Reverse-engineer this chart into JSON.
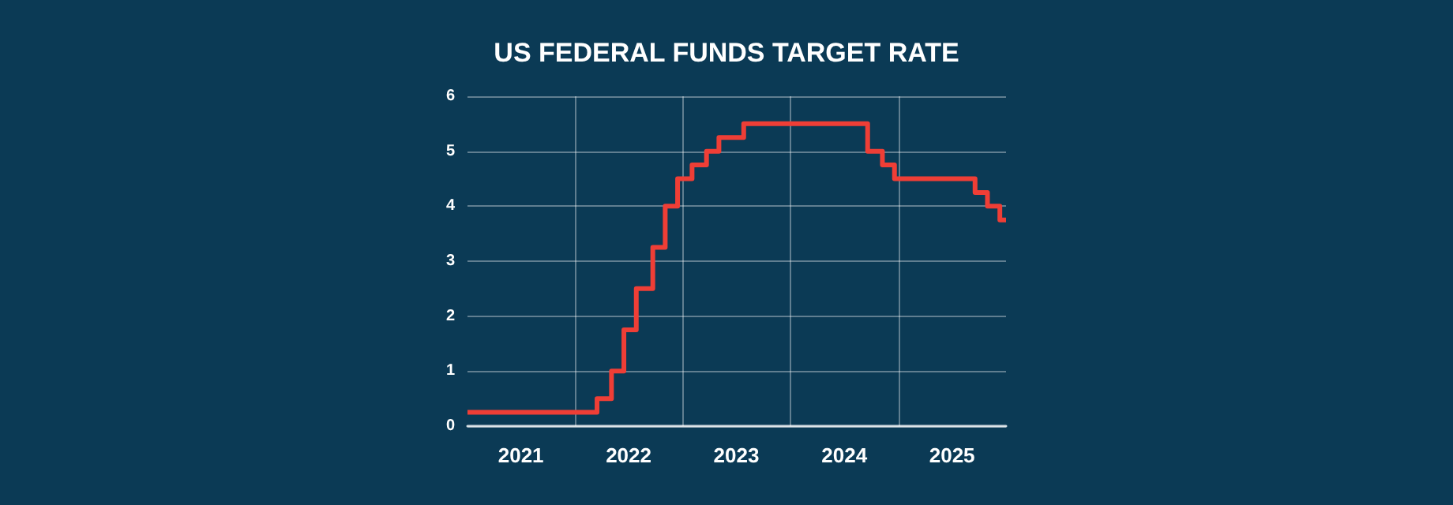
{
  "chart_data": {
    "type": "step",
    "title": "US FEDERAL FUNDS TARGET RATE",
    "x": [
      "2021-01-01",
      "2022-03-16",
      "2022-05-04",
      "2022-06-15",
      "2022-07-27",
      "2022-09-21",
      "2022-11-02",
      "2022-12-14",
      "2023-02-01",
      "2023-03-22",
      "2023-05-03",
      "2023-07-26",
      "2024-09-18",
      "2024-11-07",
      "2024-12-18",
      "2025-09-17",
      "2025-10-29",
      "2025-12-10",
      "2025-12-31"
    ],
    "series": [
      {
        "color": "#ef3e36",
        "values": [
          0.25,
          0.5,
          1.0,
          1.75,
          2.5,
          3.25,
          4.0,
          4.5,
          4.75,
          5.0,
          5.25,
          5.5,
          5.0,
          4.75,
          4.5,
          4.25,
          4.0,
          3.75,
          3.75
        ]
      }
    ],
    "xlim": [
      "2021-01-01",
      "2025-12-31"
    ],
    "xticks": [
      {
        "value": "2021-07-01",
        "label": "2021"
      },
      {
        "value": "2022-01-01",
        "label": null
      },
      {
        "value": "2022-07-01",
        "label": "2022"
      },
      {
        "value": "2023-01-01",
        "label": null
      },
      {
        "value": "2023-07-01",
        "label": "2023"
      },
      {
        "value": "2024-01-01",
        "label": null
      },
      {
        "value": "2024-07-01",
        "label": "2024"
      },
      {
        "value": "2025-01-01",
        "label": null
      },
      {
        "value": "2025-07-01",
        "label": "2025"
      }
    ],
    "ylim": [
      0,
      6
    ],
    "yticks": [
      0,
      1,
      2,
      3,
      4,
      5,
      6
    ],
    "grid": true
  }
}
